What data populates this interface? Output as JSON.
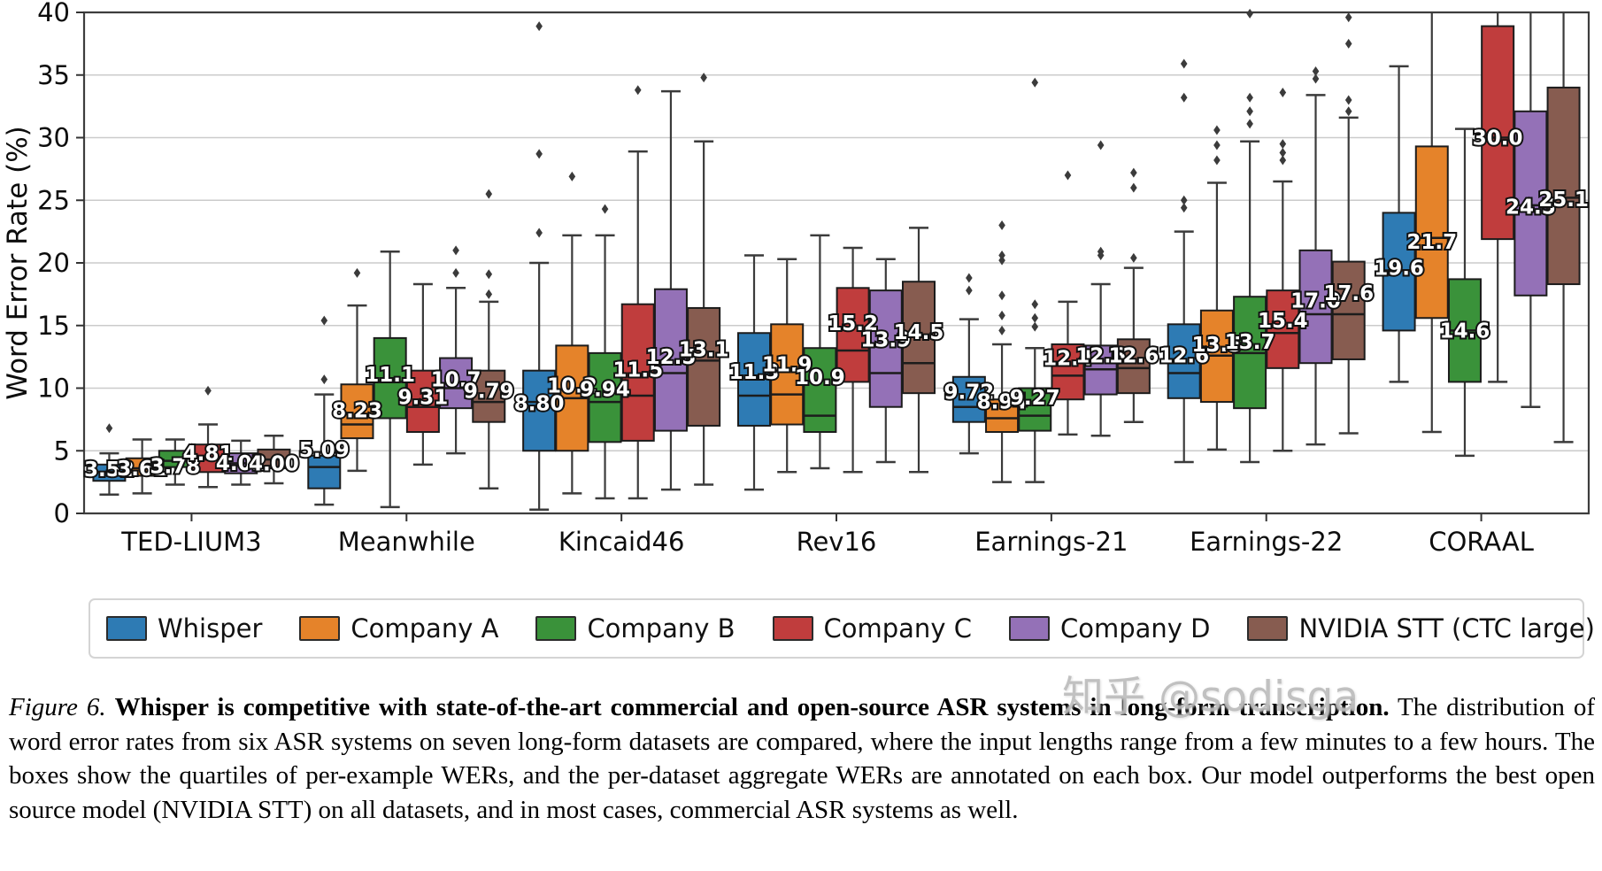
{
  "chart_data": {
    "type": "boxplot",
    "title": "",
    "xlabel": "",
    "ylabel": "Word Error Rate (%)",
    "ylim": [
      0,
      40
    ],
    "yticks": [
      0,
      5,
      10,
      15,
      20,
      25,
      30,
      35,
      40
    ],
    "grid": "horizontal",
    "legend_position": "bottom",
    "categories": [
      "TED-LIUM3",
      "Meanwhile",
      "Kincaid46",
      "Rev16",
      "Earnings-21",
      "Earnings-22",
      "CORAAL"
    ],
    "series": [
      {
        "name": "Whisper",
        "color": "#2e7bb4",
        "boxes": [
          {
            "label": "3.52",
            "lo": 1.5,
            "q1": 2.6,
            "med": 3.3,
            "q3": 3.9,
            "hi": 4.8,
            "outliers": [
              6.8
            ]
          },
          {
            "label": "5.09",
            "lo": 0.7,
            "q1": 2.0,
            "med": 3.7,
            "q3": 4.6,
            "hi": 9.5,
            "outliers": [
              10.7,
              15.4
            ]
          },
          {
            "label": "8.80",
            "lo": 0.3,
            "q1": 5.0,
            "med": 8.9,
            "q3": 11.4,
            "hi": 20.0,
            "outliers": [
              22.4,
              28.7,
              38.9
            ]
          },
          {
            "label": "11.3",
            "lo": 1.9,
            "q1": 7.0,
            "med": 9.4,
            "q3": 14.4,
            "hi": 20.6,
            "outliers": []
          },
          {
            "label": "9.72",
            "lo": 4.8,
            "q1": 7.3,
            "med": 8.5,
            "q3": 10.9,
            "hi": 15.5,
            "outliers": [
              17.8,
              18.8
            ]
          },
          {
            "label": "12.6",
            "lo": 4.1,
            "q1": 9.2,
            "med": 11.2,
            "q3": 15.1,
            "hi": 22.5,
            "outliers": [
              24.4,
              25.0,
              33.2,
              35.9
            ]
          },
          {
            "label": "19.6",
            "lo": 10.5,
            "q1": 14.6,
            "med": 19.4,
            "q3": 24.0,
            "hi": 35.7,
            "outliers": []
          }
        ]
      },
      {
        "name": "Company A",
        "color": "#e5832a",
        "boxes": [
          {
            "label": "3.61",
            "lo": 1.6,
            "q1": 3.0,
            "med": 3.6,
            "q3": 4.4,
            "hi": 5.9,
            "outliers": []
          },
          {
            "label": "8.23",
            "lo": 3.4,
            "q1": 6.0,
            "med": 7.1,
            "q3": 10.3,
            "hi": 16.6,
            "outliers": [
              19.2
            ]
          },
          {
            "label": "10.2",
            "lo": 1.6,
            "q1": 5.0,
            "med": 9.2,
            "q3": 13.4,
            "hi": 22.2,
            "outliers": [
              26.9
            ]
          },
          {
            "label": "11.9",
            "lo": 3.3,
            "q1": 7.1,
            "med": 9.5,
            "q3": 15.1,
            "hi": 20.3,
            "outliers": []
          },
          {
            "label": "8.94",
            "lo": 2.5,
            "q1": 6.5,
            "med": 7.6,
            "q3": 9.1,
            "hi": 13.5,
            "outliers": [
              14.6,
              15.8,
              17.4,
              20.2,
              20.6,
              23.0
            ]
          },
          {
            "label": "13.5",
            "lo": 5.1,
            "q1": 8.9,
            "med": 12.6,
            "q3": 16.2,
            "hi": 26.4,
            "outliers": [
              28.2,
              29.4,
              30.6
            ]
          },
          {
            "label": "21.7",
            "lo": 6.5,
            "q1": 15.6,
            "med": 22.0,
            "q3": 29.3,
            "hi": 40.0,
            "outliers": []
          }
        ]
      },
      {
        "name": "Company B",
        "color": "#3a923a",
        "boxes": [
          {
            "label": "3.78",
            "lo": 2.3,
            "q1": 3.7,
            "med": 4.2,
            "q3": 5.0,
            "hi": 5.9,
            "outliers": []
          },
          {
            "label": "11.1",
            "lo": 0.5,
            "q1": 7.6,
            "med": 10.5,
            "q3": 14.0,
            "hi": 20.9,
            "outliers": []
          },
          {
            "label": "9.94",
            "lo": 1.2,
            "q1": 5.7,
            "med": 8.9,
            "q3": 12.8,
            "hi": 22.2,
            "outliers": [
              24.3
            ]
          },
          {
            "label": "10.9",
            "lo": 3.6,
            "q1": 6.5,
            "med": 7.8,
            "q3": 13.2,
            "hi": 22.2,
            "outliers": []
          },
          {
            "label": "9.27",
            "lo": 2.5,
            "q1": 6.6,
            "med": 7.8,
            "q3": 10.0,
            "hi": 13.2,
            "outliers": [
              14.9,
              15.6,
              16.7,
              34.4
            ]
          },
          {
            "label": "13.7",
            "lo": 4.1,
            "q1": 8.4,
            "med": 12.8,
            "q3": 17.3,
            "hi": 29.7,
            "outliers": [
              31.1,
              32.1,
              33.2,
              39.9
            ]
          },
          {
            "label": "14.6",
            "lo": 4.6,
            "q1": 10.5,
            "med": 14.6,
            "q3": 18.7,
            "hi": 30.7,
            "outliers": []
          }
        ]
      },
      {
        "name": "Company C",
        "color": "#c03d3d",
        "boxes": [
          {
            "label": "4.81",
            "lo": 2.1,
            "q1": 3.3,
            "med": 4.3,
            "q3": 5.5,
            "hi": 7.1,
            "outliers": [
              9.8
            ]
          },
          {
            "label": "9.31",
            "lo": 3.9,
            "q1": 6.5,
            "med": 8.5,
            "q3": 11.4,
            "hi": 18.3,
            "outliers": []
          },
          {
            "label": "11.5",
            "lo": 1.2,
            "q1": 5.8,
            "med": 9.4,
            "q3": 16.7,
            "hi": 28.9,
            "outliers": [
              33.8
            ]
          },
          {
            "label": "15.2",
            "lo": 3.3,
            "q1": 10.5,
            "med": 13.0,
            "q3": 18.0,
            "hi": 21.2,
            "outliers": []
          },
          {
            "label": "12.4",
            "lo": 6.3,
            "q1": 9.1,
            "med": 11.0,
            "q3": 13.5,
            "hi": 16.9,
            "outliers": [
              27.0
            ]
          },
          {
            "label": "15.4",
            "lo": 5.0,
            "q1": 11.6,
            "med": 14.4,
            "q3": 17.8,
            "hi": 26.5,
            "outliers": [
              28.2,
              28.8,
              29.5,
              33.6
            ]
          },
          {
            "label": "30.0",
            "lo": 10.5,
            "q1": 21.9,
            "med": 30.0,
            "q3": 38.9,
            "hi": 40.0,
            "outliers": []
          }
        ]
      },
      {
        "name": "Company D",
        "color": "#9471b7",
        "boxes": [
          {
            "label": "4.02",
            "lo": 2.3,
            "q1": 3.2,
            "med": 4.0,
            "q3": 4.8,
            "hi": 5.8,
            "outliers": []
          },
          {
            "label": "10.7",
            "lo": 4.8,
            "q1": 8.4,
            "med": 10.0,
            "q3": 12.4,
            "hi": 18.0,
            "outliers": [
              19.2,
              21.0
            ]
          },
          {
            "label": "12.5",
            "lo": 1.9,
            "q1": 6.6,
            "med": 11.2,
            "q3": 17.9,
            "hi": 33.7,
            "outliers": []
          },
          {
            "label": "13.9",
            "lo": 4.1,
            "q1": 8.5,
            "med": 11.2,
            "q3": 17.8,
            "hi": 20.3,
            "outliers": []
          },
          {
            "label": "12.6",
            "lo": 6.2,
            "q1": 9.5,
            "med": 11.5,
            "q3": 13.4,
            "hi": 18.3,
            "outliers": [
              20.6,
              20.9,
              29.4
            ]
          },
          {
            "label": "17.0",
            "lo": 5.5,
            "q1": 12.0,
            "med": 15.9,
            "q3": 21.0,
            "hi": 33.4,
            "outliers": [
              34.7,
              35.3
            ]
          },
          {
            "label": "24.5",
            "lo": 8.5,
            "q1": 17.4,
            "med": 24.6,
            "q3": 32.1,
            "hi": 40.0,
            "outliers": []
          }
        ]
      },
      {
        "name": "NVIDIA STT (CTC large)",
        "color": "#875c50",
        "boxes": [
          {
            "label": "4.00",
            "lo": 2.4,
            "q1": 3.6,
            "med": 4.3,
            "q3": 5.1,
            "hi": 6.2,
            "outliers": []
          },
          {
            "label": "9.79",
            "lo": 2.0,
            "q1": 7.3,
            "med": 8.9,
            "q3": 11.4,
            "hi": 16.9,
            "outliers": [
              17.5,
              19.1,
              25.5
            ]
          },
          {
            "label": "13.1",
            "lo": 2.3,
            "q1": 7.0,
            "med": 12.2,
            "q3": 16.4,
            "hi": 29.7,
            "outliers": [
              34.8
            ]
          },
          {
            "label": "14.5",
            "lo": 3.3,
            "q1": 9.6,
            "med": 12.0,
            "q3": 18.5,
            "hi": 22.8,
            "outliers": []
          },
          {
            "label": "12.6",
            "lo": 7.3,
            "q1": 9.6,
            "med": 11.6,
            "q3": 13.9,
            "hi": 19.6,
            "outliers": [
              20.4,
              26.0,
              27.2
            ]
          },
          {
            "label": "17.6",
            "lo": 6.4,
            "q1": 12.3,
            "med": 15.9,
            "q3": 20.1,
            "hi": 31.6,
            "outliers": [
              32.1,
              33.0,
              37.5,
              39.6
            ]
          },
          {
            "label": "25.1",
            "lo": 5.7,
            "q1": 18.3,
            "med": 25.2,
            "q3": 34.0,
            "hi": 40.0,
            "outliers": []
          }
        ]
      }
    ]
  },
  "caption": {
    "figure_label": "Figure 6.",
    "bold": "Whisper is competitive with state-of-the-art commercial and open-source ASR systems in long-form transcription.",
    "rest": "The distribution of word error rates from six ASR systems on seven long-form datasets are compared, where the input lengths range from a few minutes to a few hours. The boxes show the quartiles of per-example WERs, and the per-dataset aggregate WERs are annotated on each box. Our model outperforms the best open source model (NVIDIA STT) on all datasets, and in most cases, commercial ASR systems as well."
  },
  "watermark": "知乎 @sodisga"
}
